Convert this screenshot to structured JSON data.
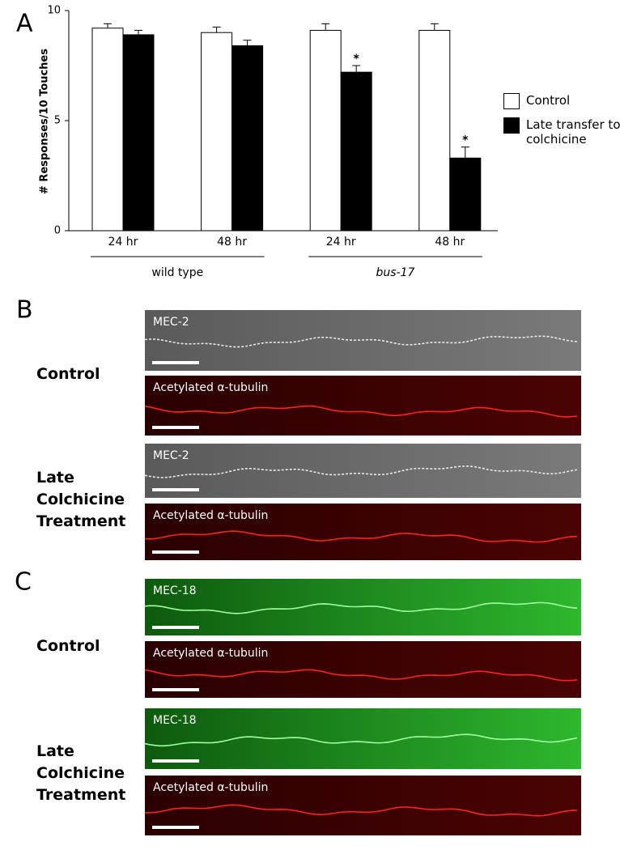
{
  "chart_data": {
    "type": "bar",
    "panel_label": "A",
    "ylabel": "# Responses/10 Touches",
    "categories": [
      "24 hr",
      "48 hr",
      "24 hr",
      "48 hr"
    ],
    "groups": [
      "wild type",
      "bus-17"
    ],
    "series": [
      {
        "name": "Control",
        "color": "#ffffff",
        "values": [
          9.2,
          9.0,
          9.1,
          9.1
        ],
        "errors": [
          0.2,
          0.25,
          0.3,
          0.3
        ]
      },
      {
        "name": "Late transfer to colchicine",
        "color": "#000000",
        "values": [
          8.9,
          8.4,
          7.2,
          3.3
        ],
        "errors": [
          0.2,
          0.25,
          0.3,
          0.5
        ],
        "significance": [
          null,
          null,
          "*",
          "*"
        ]
      }
    ],
    "ylim": [
      0,
      10
    ],
    "yticks": [
      0,
      5,
      10
    ]
  },
  "panel_b": {
    "label": "B",
    "rows": [
      {
        "condition": "Control",
        "images": [
          "MEC-2",
          "Acetylated α-tubulin"
        ]
      },
      {
        "condition": "Late Colchicine Treatment",
        "images": [
          "MEC-2",
          "Acetylated α-tubulin"
        ]
      }
    ]
  },
  "panel_c": {
    "label": "C",
    "rows": [
      {
        "condition": "Control",
        "images": [
          "MEC-18",
          "Acetylated α-tubulin"
        ]
      },
      {
        "condition": "Late Colchicine Treatment",
        "images": [
          "MEC-18",
          "Acetylated α-tubulin"
        ]
      }
    ]
  }
}
